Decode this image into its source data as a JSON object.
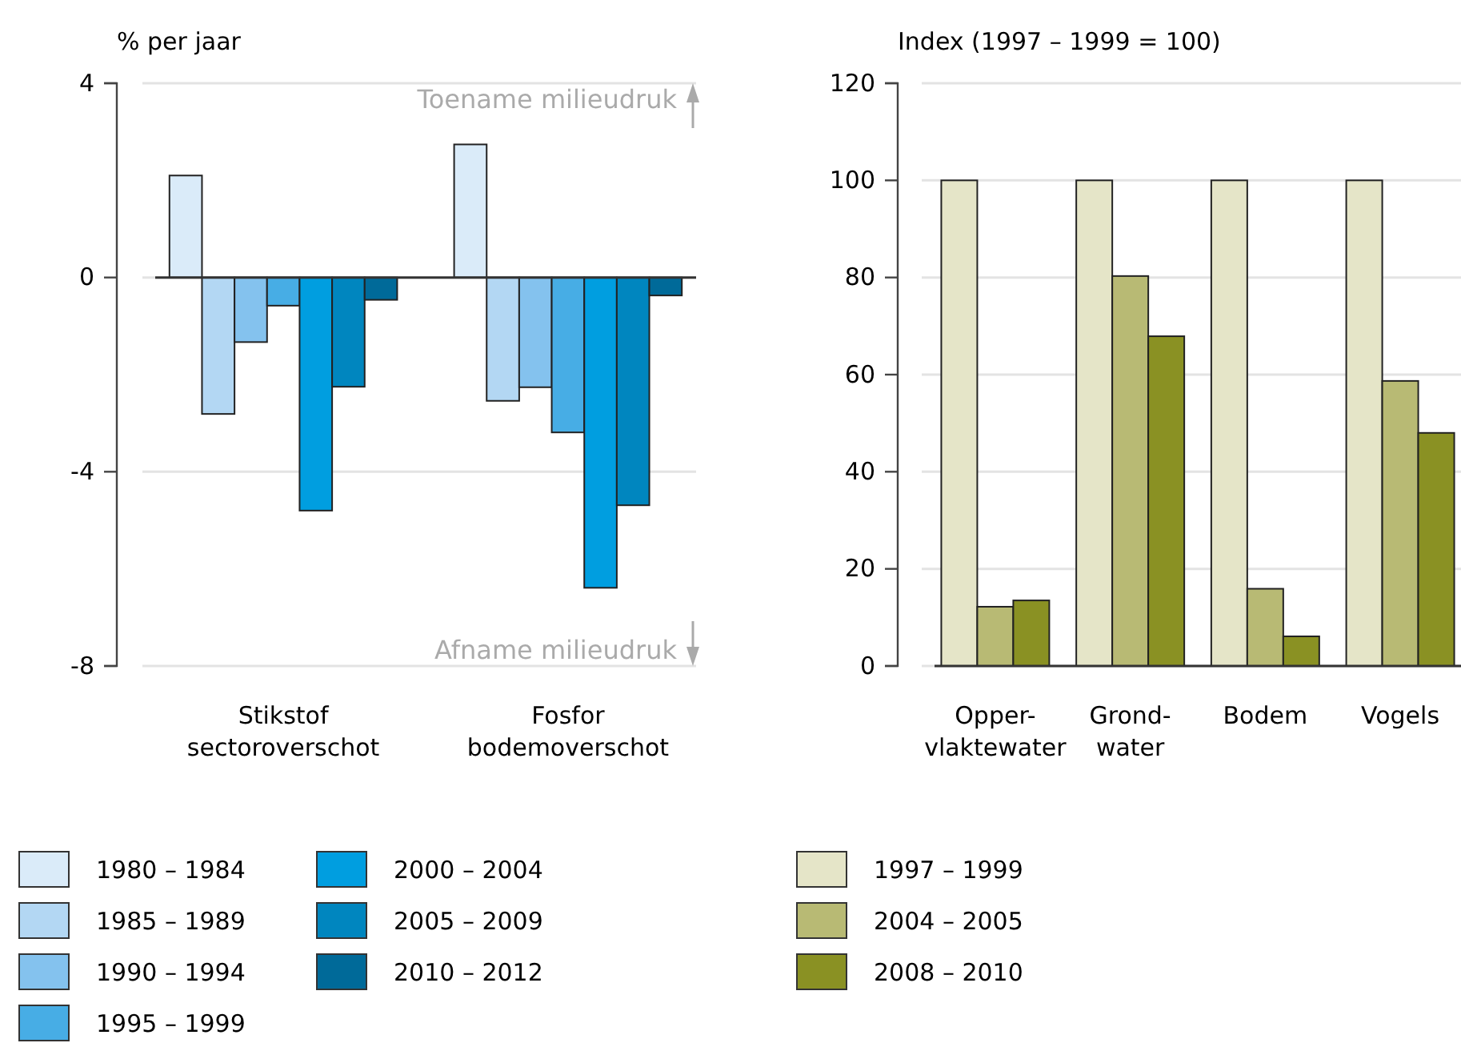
{
  "chart_data": [
    {
      "type": "bar",
      "ylabel": "% per jaar",
      "categories": [
        "Stikstof\nsectoroverschot",
        "Fosfor\nbodemoverschot"
      ],
      "series": [
        {
          "name": "1980 – 1984",
          "color": "#daebf9",
          "values": [
            2.1,
            2.74
          ]
        },
        {
          "name": "1985 – 1989",
          "color": "#b3d7f3",
          "values": [
            -2.81,
            -2.54
          ]
        },
        {
          "name": "1990 – 1994",
          "color": "#84c2ee",
          "values": [
            -1.33,
            -2.26
          ]
        },
        {
          "name": "1995 – 1999",
          "color": "#47ade5",
          "values": [
            -0.58,
            -3.19
          ]
        },
        {
          "name": "2000 – 2004",
          "color": "#009ee0",
          "values": [
            -4.8,
            -6.39
          ]
        },
        {
          "name": "2005 – 2009",
          "color": "#0086bf",
          "values": [
            -2.25,
            -4.69
          ]
        },
        {
          "name": "2010 – 2012",
          "color": "#006a99",
          "values": [
            -0.46,
            -0.37
          ]
        }
      ],
      "ylim": [
        -8,
        4
      ],
      "yticks": [
        -8,
        -4,
        0,
        4
      ],
      "grid": "y",
      "legend": "bottom",
      "annotations": [
        "Toename milieudruk",
        "Afname milieudruk"
      ]
    },
    {
      "type": "bar",
      "ylabel": "Index (1997 – 1999 = 100)",
      "categories": [
        "Opper-\nvlaktewater",
        "Grond-\nwater",
        "Bodem",
        "Vogels"
      ],
      "series": [
        {
          "name": "1997 – 1999",
          "color": "#e5e5c8",
          "values": [
            100,
            100,
            100,
            100
          ]
        },
        {
          "name": "2004 – 2005",
          "color": "#b8ba74",
          "values": [
            12.2,
            80.3,
            15.9,
            58.7
          ]
        },
        {
          "name": "2008 – 2010",
          "color": "#8a9123",
          "values": [
            13.5,
            67.9,
            6.1,
            48
          ]
        }
      ],
      "ylim": [
        0,
        120
      ],
      "yticks": [
        0,
        20,
        40,
        60,
        80,
        100,
        120
      ],
      "grid": "y",
      "legend": "bottom"
    }
  ]
}
